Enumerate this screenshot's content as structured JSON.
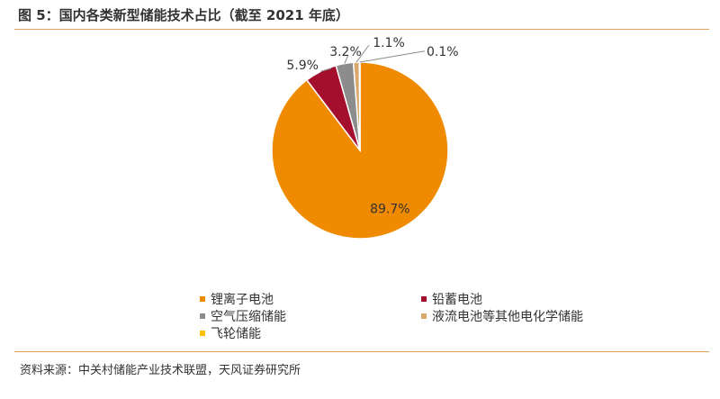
{
  "header": {
    "title": "图 5：国内各类新型储能技术占比（截至 2021 年底）"
  },
  "footer": {
    "source": "资料来源：中关村储能产业技术联盟，天风证券研究所"
  },
  "colors": {
    "rule": "#e5a35a"
  },
  "chart_data": {
    "type": "pie",
    "categories": [
      "锂离子电池",
      "铅蓄电池",
      "空气压缩储能",
      "液流电池等其他电化学储能",
      "飞轮储能"
    ],
    "values": [
      89.7,
      5.9,
      3.2,
      1.1,
      0.1
    ],
    "data_labels": [
      "89.7%",
      "5.9%",
      "3.2%",
      "1.1%",
      "0.1%"
    ],
    "colors": [
      "#f08a00",
      "#a50f2e",
      "#8c8c8c",
      "#d9a86c",
      "#ffc000"
    ],
    "legend_position": "bottom",
    "grid": false
  }
}
